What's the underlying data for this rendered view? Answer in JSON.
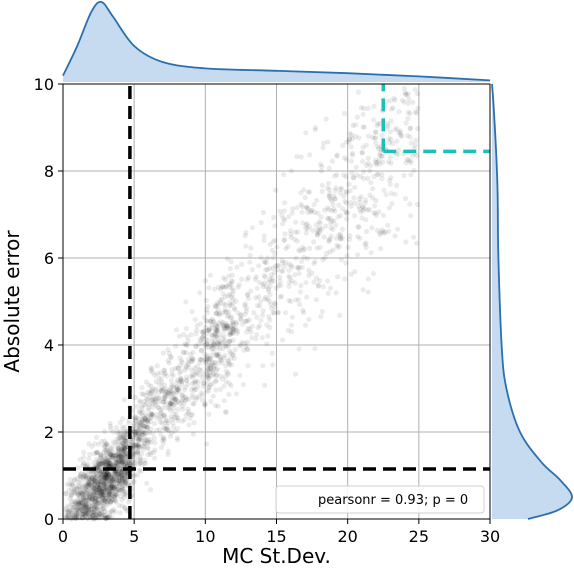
{
  "chart_data": {
    "type": "scatter",
    "xlabel": "MC St.Dev.",
    "ylabel": "Absolute error",
    "xlim": [
      0,
      30
    ],
    "ylim": [
      0,
      10
    ],
    "xticks": [
      "0",
      "5",
      "10",
      "15",
      "20",
      "25",
      "30"
    ],
    "yticks": [
      "0",
      "2",
      "4",
      "6",
      "8",
      "10"
    ],
    "grid": true,
    "legend": {
      "text": "pearsonr = 0.93; p = 0",
      "placement": "bottom-right"
    },
    "scatter_trend": {
      "description_points": [
        [
          1,
          0.3
        ],
        [
          3,
          0.8
        ],
        [
          5,
          1.5
        ],
        [
          8,
          2.8
        ],
        [
          10,
          3.8
        ],
        [
          13,
          5.0
        ],
        [
          15,
          6.0
        ],
        [
          18,
          7.0
        ],
        [
          20,
          7.8
        ],
        [
          22,
          8.3
        ]
      ],
      "point_color": "#000000",
      "point_opacity": 0.08
    },
    "reference_lines": [
      {
        "name": "black-vertical",
        "orientation": "vertical",
        "value": 4.7,
        "color": "#000000"
      },
      {
        "name": "black-horizontal",
        "orientation": "horizontal",
        "value": 1.15,
        "color": "#000000"
      },
      {
        "name": "cyan-vertical",
        "orientation": "vertical",
        "value": 22.5,
        "from": 8.45,
        "to": 10,
        "color": "#1fbfb8"
      },
      {
        "name": "cyan-horizontal",
        "orientation": "horizontal",
        "value": 8.45,
        "from": 22.5,
        "to": 30,
        "color": "#1fbfb8"
      }
    ],
    "marginal_x": {
      "x": [
        0,
        1,
        2,
        2.7,
        3.5,
        5,
        7,
        10,
        15,
        20,
        25,
        30
      ],
      "density": [
        0.08,
        0.45,
        0.88,
        1.0,
        0.82,
        0.45,
        0.25,
        0.17,
        0.14,
        0.11,
        0.07,
        0.02
      ],
      "fill": "#c6dbef",
      "line": "#2b6fae"
    },
    "marginal_y": {
      "y": [
        0,
        0.2,
        0.5,
        0.9,
        1.3,
        2.0,
        3.0,
        4.0,
        6.0,
        7.5,
        8.5,
        9.5,
        10
      ],
      "density": [
        0.45,
        0.82,
        1.0,
        0.85,
        0.62,
        0.35,
        0.18,
        0.12,
        0.08,
        0.07,
        0.05,
        0.02,
        0.0
      ],
      "fill": "#c6dbef",
      "line": "#2b6fae"
    }
  }
}
